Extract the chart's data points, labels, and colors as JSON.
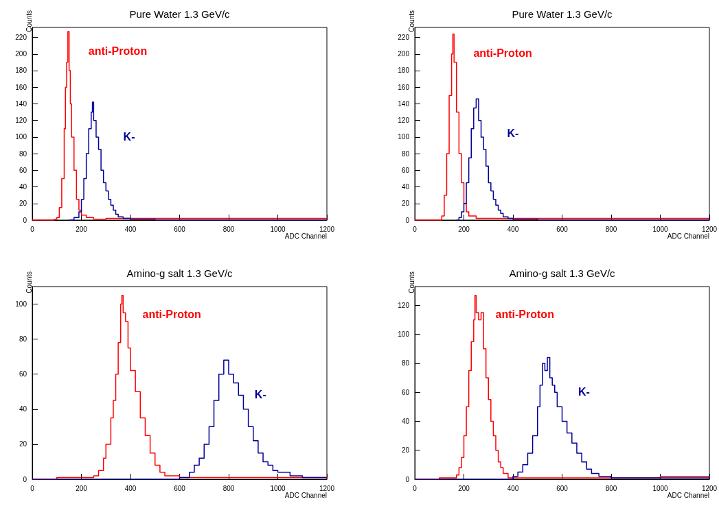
{
  "chart_data": [
    {
      "type": "step",
      "title": "Pure Water 1.3 GeV/c",
      "xlabel": "ADC Channel",
      "ylabel": "Counts",
      "xlim": [
        0,
        1200
      ],
      "xticks": [
        0,
        200,
        400,
        600,
        800,
        1000,
        1200
      ],
      "ylim": [
        0,
        232
      ],
      "yticks": [
        0,
        20,
        40,
        60,
        80,
        100,
        120,
        140,
        160,
        180,
        200,
        220
      ],
      "grid": false,
      "legend": false,
      "marker": "none",
      "line_style": "solid",
      "series": [
        {
          "name": "anti-Proton",
          "color": "#ff0000",
          "x": [
            0,
            80,
            90,
            100,
            110,
            120,
            130,
            135,
            140,
            145,
            150,
            155,
            160,
            170,
            180,
            190,
            200,
            220,
            250,
            300,
            400,
            600,
            900,
            1200
          ],
          "values": [
            0,
            0,
            1,
            3,
            15,
            50,
            110,
            160,
            190,
            227,
            180,
            140,
            100,
            60,
            25,
            12,
            6,
            3,
            1,
            2,
            2,
            2,
            2,
            2
          ]
        },
        {
          "name": "K-",
          "color": "#000099",
          "x": [
            150,
            170,
            190,
            200,
            210,
            220,
            230,
            240,
            245,
            250,
            260,
            270,
            280,
            290,
            300,
            310,
            320,
            330,
            340,
            350,
            370,
            400,
            500,
            1200
          ],
          "values": [
            0,
            3,
            10,
            25,
            50,
            80,
            110,
            130,
            142,
            120,
            100,
            85,
            60,
            45,
            35,
            25,
            18,
            12,
            7,
            4,
            2,
            1,
            0,
            0
          ]
        }
      ]
    },
    {
      "type": "step",
      "title": "Pure Water 1.3 GeV/c",
      "xlabel": "ADC Channel",
      "ylabel": "Counts",
      "xlim": [
        0,
        1200
      ],
      "xticks": [
        0,
        200,
        400,
        600,
        800,
        1000,
        1200
      ],
      "ylim": [
        0,
        232
      ],
      "yticks": [
        0,
        20,
        40,
        60,
        80,
        100,
        120,
        140,
        160,
        180,
        200,
        220
      ],
      "grid": false,
      "legend": false,
      "marker": "none",
      "line_style": "solid",
      "series": [
        {
          "name": "anti-Proton",
          "color": "#ff0000",
          "x": [
            0,
            100,
            110,
            120,
            130,
            140,
            150,
            155,
            160,
            170,
            180,
            190,
            200,
            210,
            220,
            250,
            400,
            1200
          ],
          "values": [
            0,
            0,
            5,
            30,
            80,
            150,
            200,
            224,
            190,
            130,
            80,
            45,
            20,
            10,
            5,
            2,
            2,
            2
          ]
        },
        {
          "name": "K-",
          "color": "#000099",
          "x": [
            170,
            180,
            190,
            200,
            210,
            220,
            230,
            240,
            250,
            260,
            270,
            280,
            290,
            300,
            310,
            320,
            330,
            340,
            350,
            360,
            380,
            400,
            500,
            1200
          ],
          "values": [
            0,
            3,
            10,
            20,
            45,
            75,
            110,
            135,
            146,
            120,
            100,
            85,
            65,
            45,
            35,
            25,
            18,
            12,
            8,
            4,
            2,
            1,
            0,
            0
          ]
        }
      ]
    },
    {
      "type": "step",
      "title": "Amino-g salt 1.3 GeV/c",
      "xlabel": "ADC Channel",
      "ylabel": "Counts",
      "xlim": [
        0,
        1200
      ],
      "xticks": [
        0,
        200,
        400,
        600,
        800,
        1000,
        1200
      ],
      "ylim": [
        0,
        110
      ],
      "yticks": [
        0,
        20,
        40,
        60,
        80,
        100
      ],
      "grid": false,
      "legend": false,
      "marker": "none",
      "line_style": "solid",
      "series": [
        {
          "name": "anti-Proton",
          "color": "#ff0000",
          "x": [
            0,
            100,
            200,
            250,
            270,
            290,
            300,
            320,
            330,
            340,
            350,
            360,
            365,
            370,
            380,
            390,
            400,
            420,
            440,
            460,
            480,
            500,
            520,
            540,
            600,
            800,
            1000,
            1200
          ],
          "values": [
            0,
            1,
            1,
            2,
            5,
            12,
            20,
            35,
            45,
            60,
            78,
            100,
            105,
            95,
            90,
            75,
            62,
            50,
            35,
            25,
            15,
            8,
            4,
            2,
            1,
            1,
            1,
            0
          ]
        },
        {
          "name": "K-",
          "color": "#000099",
          "x": [
            0,
            580,
            600,
            640,
            660,
            680,
            700,
            720,
            740,
            760,
            780,
            800,
            820,
            840,
            860,
            880,
            900,
            920,
            940,
            960,
            980,
            1000,
            1050,
            1100,
            1200
          ],
          "values": [
            0,
            0,
            1,
            4,
            8,
            12,
            20,
            30,
            45,
            60,
            68,
            60,
            55,
            48,
            40,
            30,
            22,
            15,
            10,
            8,
            5,
            4,
            2,
            1,
            1
          ]
        }
      ]
    },
    {
      "type": "step",
      "title": "Amino-g salt 1.3 GeV/c",
      "xlabel": "ADC Channel",
      "ylabel": "Counts",
      "xlim": [
        0,
        1200
      ],
      "xticks": [
        0,
        200,
        400,
        600,
        800,
        1000,
        1200
      ],
      "ylim": [
        0,
        133
      ],
      "yticks": [
        0,
        20,
        40,
        60,
        80,
        100,
        120
      ],
      "grid": false,
      "legend": false,
      "marker": "none",
      "line_style": "solid",
      "series": [
        {
          "name": "anti-Proton",
          "color": "#ff0000",
          "x": [
            0,
            100,
            160,
            170,
            180,
            190,
            200,
            210,
            220,
            230,
            240,
            245,
            250,
            260,
            270,
            280,
            290,
            300,
            310,
            320,
            330,
            340,
            350,
            360,
            380,
            600,
            1000,
            1200
          ],
          "values": [
            0,
            1,
            1,
            3,
            8,
            15,
            30,
            50,
            75,
            95,
            110,
            127,
            115,
            110,
            115,
            90,
            70,
            55,
            40,
            30,
            20,
            12,
            8,
            4,
            1,
            1,
            2,
            0
          ]
        },
        {
          "name": "K-",
          "color": "#000099",
          "x": [
            0,
            380,
            400,
            420,
            440,
            460,
            480,
            500,
            510,
            520,
            530,
            540,
            550,
            560,
            570,
            580,
            600,
            620,
            640,
            660,
            680,
            700,
            720,
            750,
            800,
            1200
          ],
          "values": [
            0,
            0,
            2,
            5,
            10,
            18,
            30,
            50,
            65,
            80,
            75,
            84,
            70,
            65,
            60,
            50,
            40,
            32,
            25,
            18,
            12,
            7,
            4,
            2,
            1,
            0
          ]
        }
      ]
    }
  ]
}
